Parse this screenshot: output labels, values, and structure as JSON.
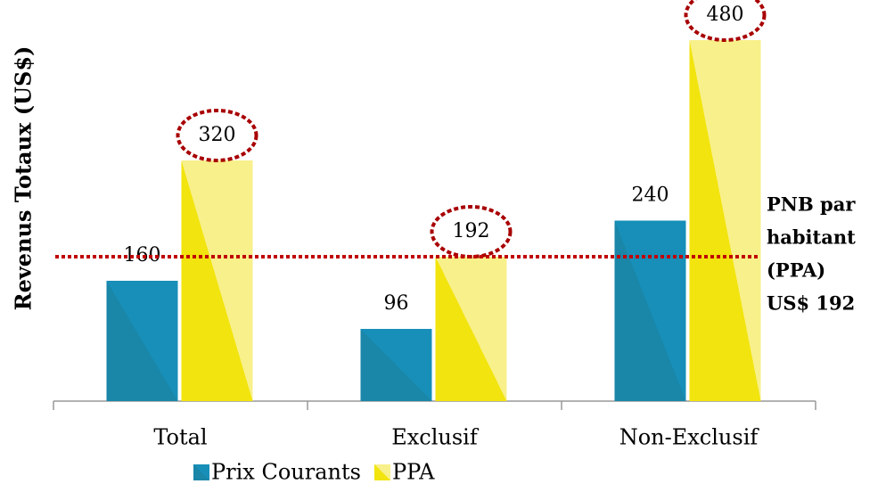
{
  "chart_data": {
    "type": "bar",
    "y_label": "Revenus Totaux (US$)",
    "categories": [
      "Total",
      "Exclusif",
      "Non-Exclusif"
    ],
    "series": [
      {
        "name": "Prix Courants",
        "color": "#1a86a8",
        "values": [
          160,
          96,
          240
        ]
      },
      {
        "name": "PPA",
        "color": "#f2e40e",
        "values": [
          320,
          192,
          480
        ]
      }
    ],
    "ylim": [
      0,
      480
    ],
    "reference_line": {
      "value": 192,
      "color": "#c00000",
      "label": [
        "PNB par",
        "habitant",
        "(PPA)",
        "US$ 192"
      ]
    }
  }
}
